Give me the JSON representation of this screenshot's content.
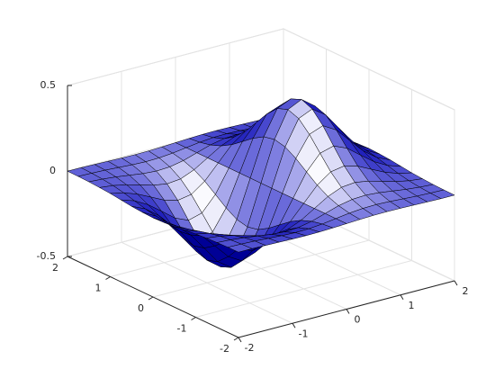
{
  "chart_data": {
    "type": "surface",
    "color": "#0000ff",
    "grid": true,
    "xlim": [
      -2,
      2
    ],
    "ylim": [
      -2,
      2
    ],
    "zlim": [
      -0.5,
      0.5
    ],
    "xticks": [
      -2,
      -1,
      0,
      1,
      2
    ],
    "yticks": [
      -2,
      -1,
      0,
      1,
      2
    ],
    "zticks": [
      -0.5,
      0,
      0.5
    ],
    "x": [
      -2,
      -1.75,
      -1.5,
      -1.25,
      -1,
      -0.75,
      -0.5,
      -0.25,
      0,
      0.25,
      0.5,
      0.75,
      1,
      1.25,
      1.5,
      1.75,
      2
    ],
    "y": [
      -2,
      -1.75,
      -1.5,
      -1.25,
      -1,
      -0.75,
      -0.5,
      -0.25,
      0,
      0.25,
      0.5,
      0.75,
      1,
      1.25,
      1.5,
      1.75,
      2
    ],
    "z": [
      [
        -0.001,
        -0.001,
        -0.003,
        -0.005,
        -0.007,
        -0.008,
        -0.007,
        -0.004,
        0,
        0.004,
        0.007,
        0.008,
        0.007,
        0.005,
        0.003,
        0.001,
        0.001
      ],
      [
        -0.002,
        -0.004,
        -0.007,
        -0.012,
        -0.017,
        -0.02,
        -0.018,
        -0.011,
        0,
        0.011,
        0.018,
        0.02,
        0.017,
        0.012,
        0.007,
        0.004,
        0.002
      ],
      [
        -0.004,
        -0.009,
        -0.017,
        -0.028,
        -0.039,
        -0.045,
        -0.041,
        -0.025,
        0,
        0.025,
        0.041,
        0.045,
        0.039,
        0.028,
        0.017,
        0.009,
        0.004
      ],
      [
        -0.008,
        -0.017,
        -0.033,
        -0.055,
        -0.077,
        -0.09,
        -0.082,
        -0.049,
        0,
        0.049,
        0.082,
        0.09,
        0.077,
        0.055,
        0.033,
        0.017,
        0.008
      ],
      [
        -0.013,
        -0.03,
        -0.058,
        -0.096,
        -0.135,
        -0.157,
        -0.143,
        -0.086,
        0,
        0.086,
        0.143,
        0.157,
        0.135,
        0.096,
        0.058,
        0.03,
        0.013
      ],
      [
        -0.021,
        -0.047,
        -0.09,
        -0.149,
        -0.21,
        -0.244,
        -0.222,
        -0.134,
        0,
        0.134,
        0.222,
        0.244,
        0.21,
        0.149,
        0.09,
        0.047,
        0.021
      ],
      [
        -0.029,
        -0.064,
        -0.123,
        -0.204,
        -0.287,
        -0.333,
        -0.303,
        -0.183,
        0,
        0.183,
        0.303,
        0.333,
        0.287,
        0.204,
        0.123,
        0.064,
        0.029
      ],
      [
        -0.034,
        -0.077,
        -0.149,
        -0.246,
        -0.346,
        -0.401,
        -0.366,
        -0.221,
        0,
        0.221,
        0.366,
        0.401,
        0.346,
        0.246,
        0.149,
        0.077,
        0.034
      ],
      [
        -0.037,
        -0.082,
        -0.158,
        -0.262,
        -0.368,
        -0.427,
        -0.389,
        -0.235,
        0,
        0.235,
        0.389,
        0.427,
        0.368,
        0.262,
        0.158,
        0.082,
        0.037
      ],
      [
        -0.034,
        -0.077,
        -0.149,
        -0.246,
        -0.346,
        -0.401,
        -0.366,
        -0.221,
        0,
        0.221,
        0.366,
        0.401,
        0.346,
        0.246,
        0.149,
        0.077,
        0.034
      ],
      [
        -0.029,
        -0.064,
        -0.123,
        -0.204,
        -0.287,
        -0.333,
        -0.303,
        -0.183,
        0,
        0.183,
        0.303,
        0.333,
        0.287,
        0.204,
        0.123,
        0.064,
        0.029
      ],
      [
        -0.021,
        -0.047,
        -0.09,
        -0.149,
        -0.21,
        -0.244,
        -0.222,
        -0.134,
        0,
        0.134,
        0.222,
        0.244,
        0.21,
        0.149,
        0.09,
        0.047,
        0.021
      ],
      [
        -0.013,
        -0.03,
        -0.058,
        -0.096,
        -0.135,
        -0.157,
        -0.143,
        -0.086,
        0,
        0.086,
        0.143,
        0.157,
        0.135,
        0.096,
        0.058,
        0.03,
        0.013
      ],
      [
        -0.008,
        -0.017,
        -0.033,
        -0.055,
        -0.077,
        -0.09,
        -0.082,
        -0.049,
        0,
        0.049,
        0.082,
        0.09,
        0.077,
        0.055,
        0.033,
        0.017,
        0.008
      ],
      [
        -0.004,
        -0.009,
        -0.017,
        -0.028,
        -0.039,
        -0.045,
        -0.041,
        -0.025,
        0,
        0.025,
        0.041,
        0.045,
        0.039,
        0.028,
        0.017,
        0.009,
        0.004
      ],
      [
        -0.002,
        -0.004,
        -0.007,
        -0.012,
        -0.017,
        -0.02,
        -0.018,
        -0.011,
        0,
        0.011,
        0.018,
        0.02,
        0.017,
        0.012,
        0.007,
        0.004,
        0.002
      ],
      [
        -0.001,
        -0.001,
        -0.003,
        -0.005,
        -0.007,
        -0.008,
        -0.007,
        -0.004,
        0,
        0.004,
        0.007,
        0.008,
        0.007,
        0.005,
        0.003,
        0.001,
        0.001
      ]
    ]
  }
}
